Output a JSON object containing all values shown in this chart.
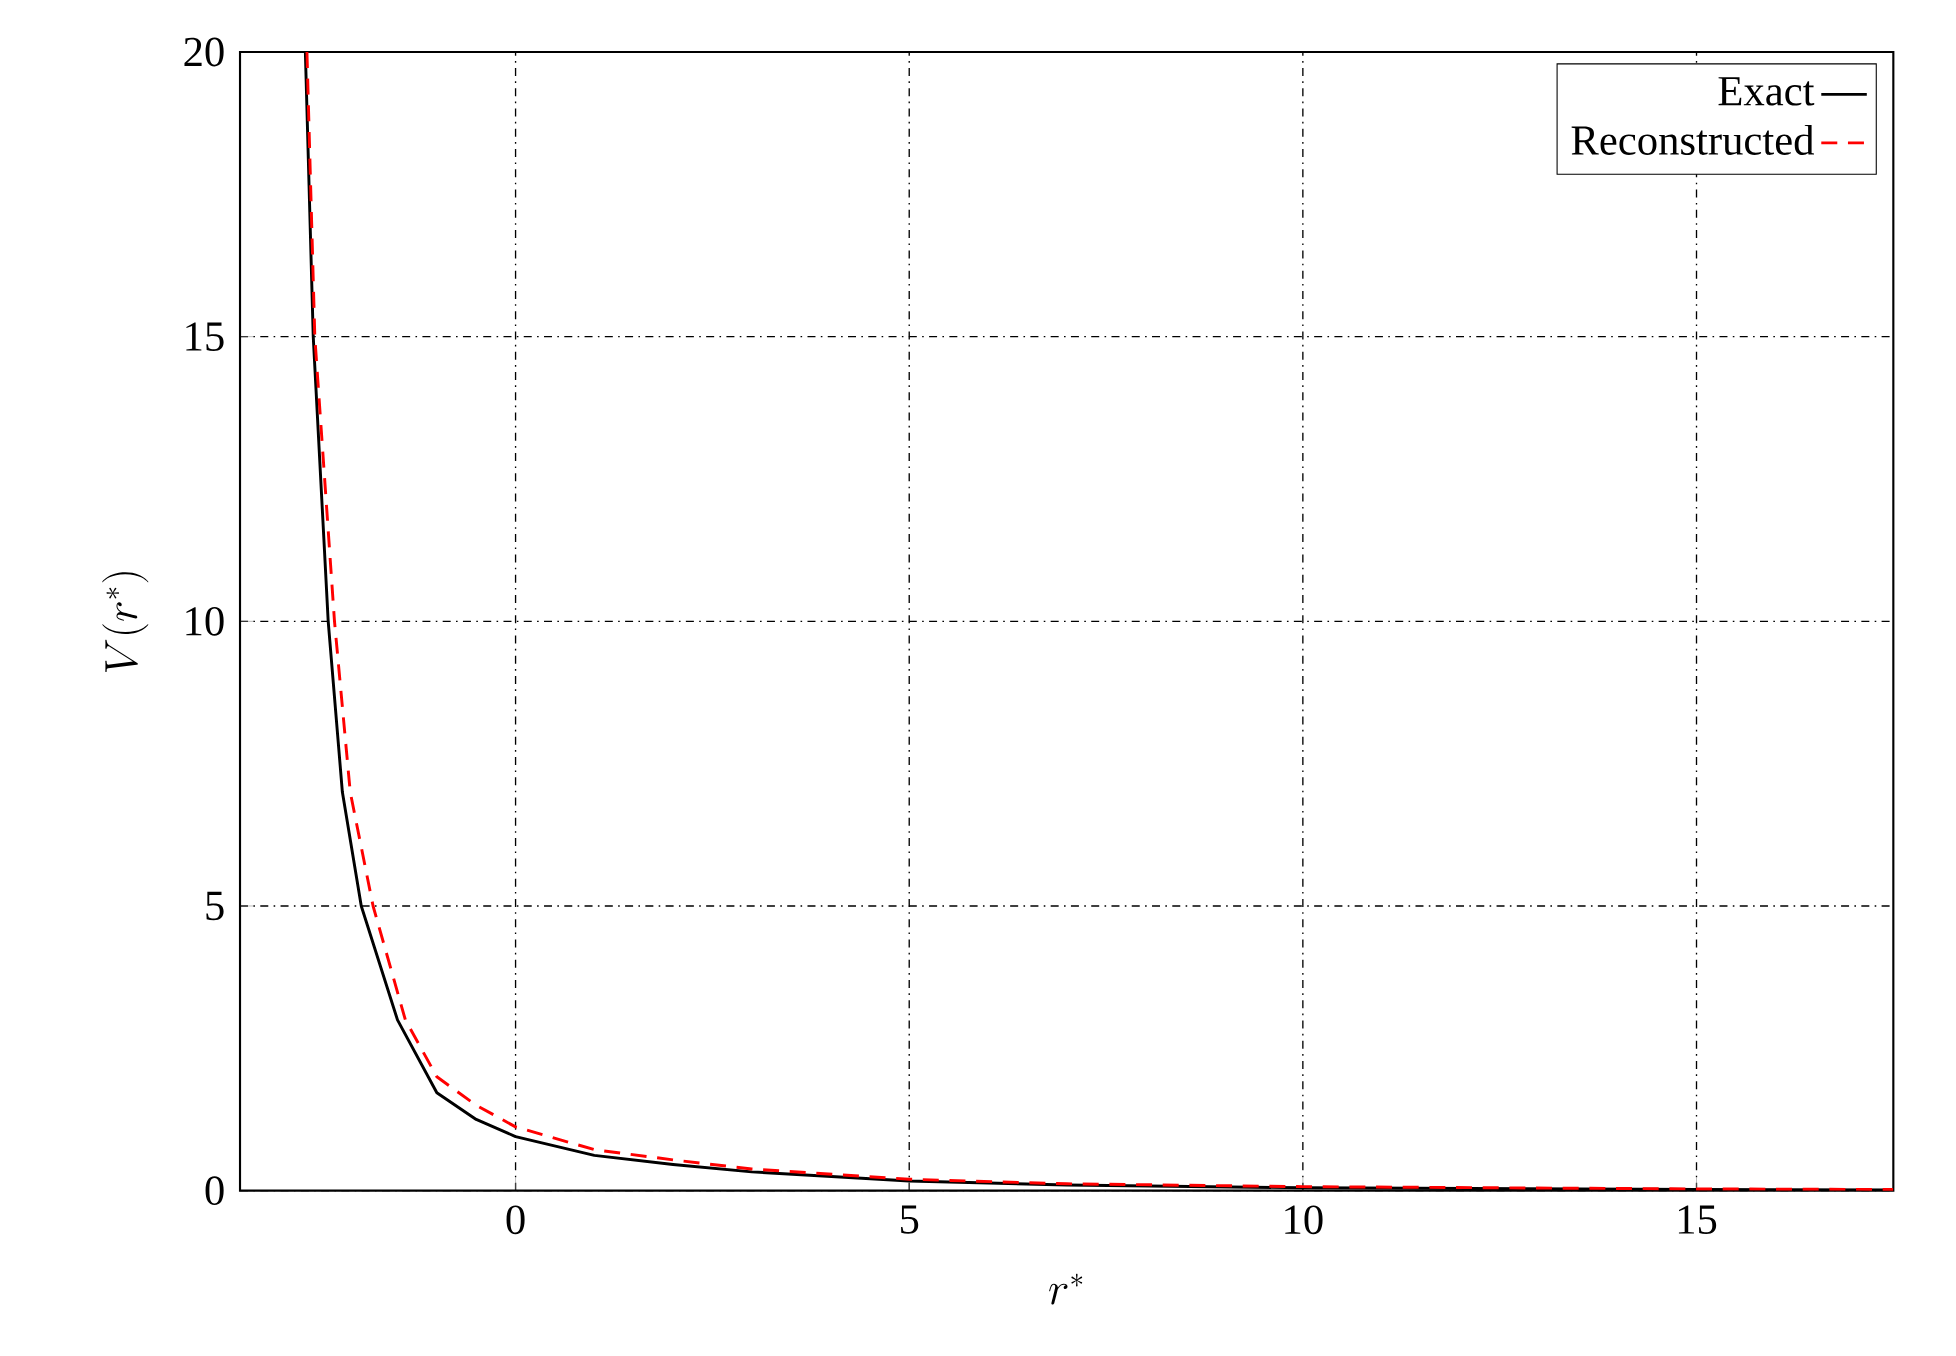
{
  "chart_data": {
    "type": "line",
    "xlabel": "r^*",
    "ylabel": "V(r^*)",
    "xlim": [
      -3.5,
      17.5
    ],
    "ylim": [
      0,
      20
    ],
    "xticks": [
      0,
      5,
      10,
      15
    ],
    "yticks": [
      0,
      5,
      10,
      15,
      20
    ],
    "grid": true,
    "legend": "top right",
    "marker": "none",
    "series": [
      {
        "name": "Exact",
        "color": "#000000",
        "line_style": "solid",
        "x": [
          -2.67,
          -2.57,
          -2.38,
          -2.2,
          -1.96,
          -1.5,
          -1,
          -0.5,
          0,
          1,
          2,
          3,
          5,
          7,
          10,
          15,
          17.5
        ],
        "values": [
          20,
          15,
          10,
          7,
          5,
          3,
          1.72,
          1.25,
          0.95,
          0.62,
          0.46,
          0.33,
          0.17,
          0.1,
          0.05,
          0.02,
          0.01
        ]
      },
      {
        "name": "Reconstructed",
        "color": "#ff0000",
        "line_style": "dashed",
        "x": [
          -2.65,
          -2.55,
          -2.3,
          -2.1,
          -1.81,
          -1.4,
          -1,
          -0.5,
          0,
          1,
          2,
          3,
          5,
          7,
          10,
          15,
          17.5
        ],
        "values": [
          20,
          15,
          10,
          7,
          5,
          3,
          2.0,
          1.5,
          1.12,
          0.72,
          0.54,
          0.38,
          0.2,
          0.12,
          0.07,
          0.03,
          0.02
        ]
      }
    ]
  }
}
